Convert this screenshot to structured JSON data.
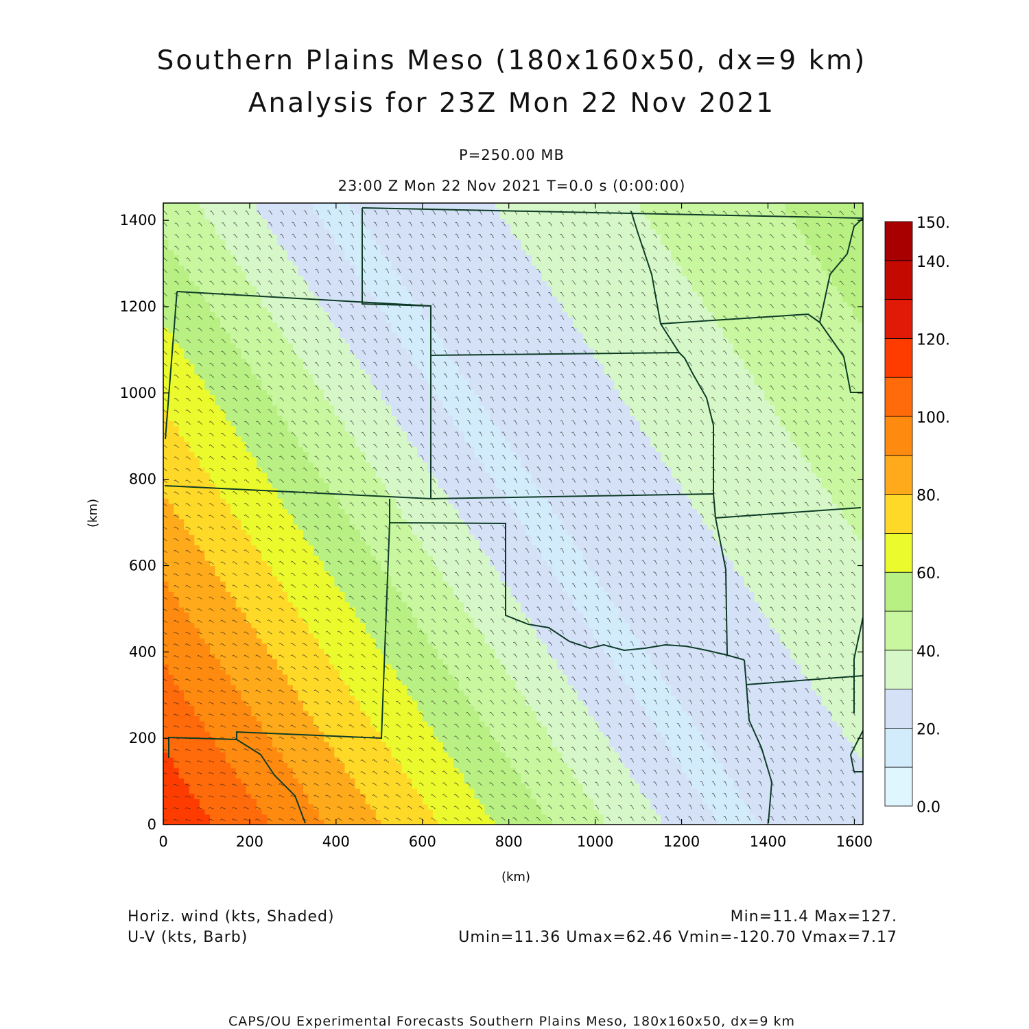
{
  "header": {
    "title_line1": "Southern Plains Meso (180x160x50, dx=9 km)",
    "title_line2": "Analysis for 23Z Mon 22 Nov 2021",
    "level": "P=250.00 MB",
    "valid_time": "23:00 Z Mon 22 Nov 2021    T=0.0 s (0:00:00)"
  },
  "chart_data": {
    "type": "heatmap",
    "xlabel": "(km)",
    "ylabel": "(km)",
    "xlim": [
      0,
      1620
    ],
    "ylim": [
      0,
      1440
    ],
    "x_ticks": [
      0,
      200,
      400,
      600,
      800,
      1000,
      1200,
      1400,
      1600
    ],
    "y_ticks": [
      0,
      200,
      400,
      600,
      800,
      1000,
      1200,
      1400
    ],
    "colorbar": {
      "levels": [
        0,
        10,
        20,
        30,
        40,
        50,
        60,
        70,
        80,
        90,
        100,
        110,
        120,
        130,
        140,
        150
      ],
      "labels": [
        "0.0",
        "20.",
        "40.",
        "60.",
        "80.",
        "100.",
        "120.",
        "140.",
        "150."
      ],
      "label_values": [
        0,
        20,
        40,
        60,
        80,
        100,
        120,
        140,
        150
      ],
      "colors": [
        "#e0f6ff",
        "#d2ecfc",
        "#d4e1f7",
        "#d6f7c8",
        "#c8f7a0",
        "#b9f084",
        "#eafa2c",
        "#ffd928",
        "#ffaa1a",
        "#ff8a10",
        "#ff6a0a",
        "#ff3c00",
        "#e01a06",
        "#c40a00",
        "#a80000"
      ]
    },
    "field": "Horizontal wind speed (kts)",
    "min": 11.4,
    "max": 127
  },
  "footer": {
    "field1": "Horiz. wind (kts, Shaded)",
    "field2": "U-V (kts, Barb)",
    "minmax": "Min=11.4 Max=127.",
    "uv_stats": "Umin=11.36 Umax=62.46 Vmin=-120.70 Vmax=7.17",
    "credit": "CAPS/OU Experimental Forecasts  Southern Plains Meso, 180x160x50, dx=9 km"
  }
}
